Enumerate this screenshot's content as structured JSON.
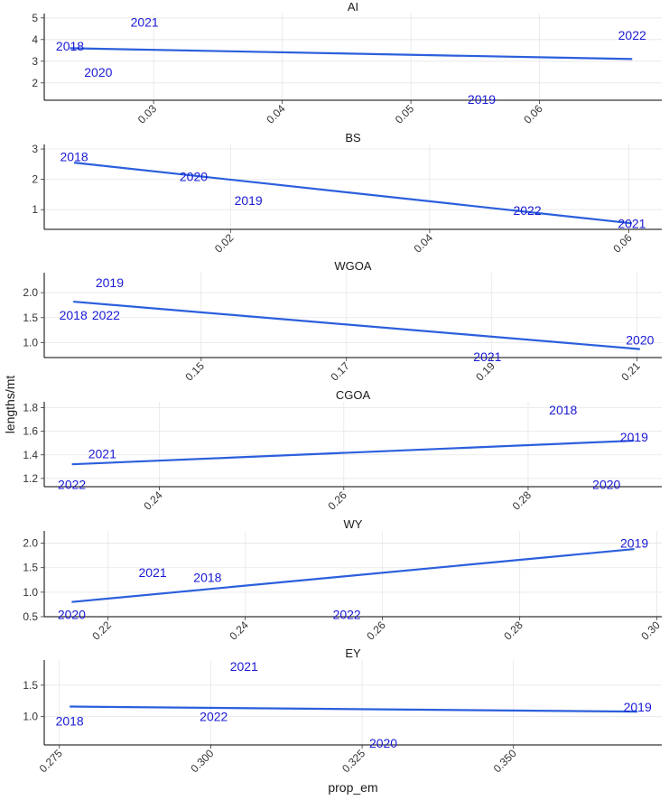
{
  "chart_data": {
    "type": "scatter",
    "xlabel": "prop_em",
    "ylabel": "lengths/mt",
    "panels": [
      {
        "title": "AI",
        "xlim": [
          0.0215,
          0.0695
        ],
        "ylim": [
          1.2,
          5.2
        ],
        "xticks": [
          0.03,
          0.04,
          0.05,
          0.06
        ],
        "xtick_labels": [
          "0.03",
          "0.04",
          "0.05",
          "0.06"
        ],
        "yticks": [
          2,
          3,
          4,
          5
        ],
        "ytick_labels": [
          "2",
          "3",
          "4",
          "5"
        ],
        "points": [
          {
            "label": "2018",
            "x": 0.0235,
            "y": 3.7
          },
          {
            "label": "2021",
            "x": 0.0293,
            "y": 4.8
          },
          {
            "label": "2020",
            "x": 0.0257,
            "y": 2.5
          },
          {
            "label": "2022",
            "x": 0.0672,
            "y": 4.2
          },
          {
            "label": "2019",
            "x": 0.0555,
            "y": 1.25
          }
        ],
        "trend": [
          {
            "x": 0.0235,
            "y": 3.6
          },
          {
            "x": 0.0672,
            "y": 3.1
          }
        ]
      },
      {
        "title": "BS",
        "xlim": [
          0.0013,
          0.0633
        ],
        "ylim": [
          0.35,
          3.15
        ],
        "xticks": [
          0.02,
          0.04,
          0.06
        ],
        "xtick_labels": [
          "0.02",
          "0.04",
          "0.06"
        ],
        "yticks": [
          1,
          2,
          3
        ],
        "ytick_labels": [
          "1",
          "2",
          "3"
        ],
        "points": [
          {
            "label": "2018",
            "x": 0.0043,
            "y": 2.75
          },
          {
            "label": "2020",
            "x": 0.0163,
            "y": 2.1
          },
          {
            "label": "2019",
            "x": 0.0218,
            "y": 1.3
          },
          {
            "label": "2022",
            "x": 0.0498,
            "y": 0.98
          },
          {
            "label": "2021",
            "x": 0.0603,
            "y": 0.55
          }
        ],
        "trend": [
          {
            "x": 0.0043,
            "y": 2.55
          },
          {
            "x": 0.0603,
            "y": 0.55
          }
        ]
      },
      {
        "title": "WGOA",
        "xlim": [
          0.1284,
          0.2134
        ],
        "ylim": [
          0.7,
          2.4
        ],
        "xticks": [
          0.15,
          0.17,
          0.19,
          0.21
        ],
        "xtick_labels": [
          "0.15",
          "0.17",
          "0.19",
          "0.21"
        ],
        "yticks": [
          1.0,
          1.5,
          2.0
        ],
        "ytick_labels": [
          "1.0",
          "1.5",
          "2.0"
        ],
        "points": [
          {
            "label": "2019",
            "x": 0.1374,
            "y": 2.2
          },
          {
            "label": "2018",
            "x": 0.1324,
            "y": 1.55
          },
          {
            "label": "2022",
            "x": 0.1369,
            "y": 1.55
          },
          {
            "label": "2021",
            "x": 0.1894,
            "y": 0.72
          },
          {
            "label": "2020",
            "x": 0.2104,
            "y": 1.05
          }
        ],
        "trend": [
          {
            "x": 0.1324,
            "y": 1.82
          },
          {
            "x": 0.2104,
            "y": 0.87
          }
        ]
      },
      {
        "title": "CGOA",
        "xlim": [
          0.2275,
          0.2945
        ],
        "ylim": [
          1.13,
          1.85
        ],
        "xticks": [
          0.24,
          0.26,
          0.28
        ],
        "xtick_labels": [
          "0.24",
          "0.26",
          "0.28"
        ],
        "yticks": [
          1.2,
          1.4,
          1.6,
          1.8
        ],
        "ytick_labels": [
          "1.2",
          "1.4",
          "1.6",
          "1.8"
        ],
        "points": [
          {
            "label": "2018",
            "x": 0.2838,
            "y": 1.78
          },
          {
            "label": "2021",
            "x": 0.2338,
            "y": 1.41
          },
          {
            "label": "2022",
            "x": 0.2305,
            "y": 1.15
          },
          {
            "label": "2020",
            "x": 0.2885,
            "y": 1.15
          },
          {
            "label": "2019",
            "x": 0.2915,
            "y": 1.55
          }
        ],
        "trend": [
          {
            "x": 0.2305,
            "y": 1.32
          },
          {
            "x": 0.2915,
            "y": 1.52
          }
        ]
      },
      {
        "title": "WY",
        "xlim": [
          0.2107,
          0.3007
        ],
        "ylim": [
          0.5,
          2.25
        ],
        "xticks": [
          0.22,
          0.24,
          0.26,
          0.28,
          0.3
        ],
        "xtick_labels": [
          "0.22",
          "0.24",
          "0.26",
          "0.28",
          "0.30"
        ],
        "yticks": [
          0.5,
          1.0,
          1.5,
          2.0
        ],
        "ytick_labels": [
          "0.5",
          "1.0",
          "1.5",
          "2.0"
        ],
        "points": [
          {
            "label": "2021",
            "x": 0.2265,
            "y": 1.4
          },
          {
            "label": "2018",
            "x": 0.2345,
            "y": 1.3
          },
          {
            "label": "2020",
            "x": 0.2147,
            "y": 0.55
          },
          {
            "label": "2022",
            "x": 0.2548,
            "y": 0.55
          },
          {
            "label": "2019",
            "x": 0.2967,
            "y": 2.0
          }
        ],
        "trend": [
          {
            "x": 0.2147,
            "y": 0.8
          },
          {
            "x": 0.2967,
            "y": 1.88
          }
        ]
      },
      {
        "title": "EY",
        "xlim": [
          0.2725,
          0.3745
        ],
        "ylim": [
          0.55,
          1.9
        ],
        "xticks": [
          0.275,
          0.3,
          0.325,
          0.35
        ],
        "xtick_labels": [
          "0.275",
          "0.300",
          "0.325",
          "0.350"
        ],
        "yticks": [
          1.0,
          1.5
        ],
        "ytick_labels": [
          "1.0",
          "1.5"
        ],
        "points": [
          {
            "label": "2021",
            "x": 0.3055,
            "y": 1.8
          },
          {
            "label": "2018",
            "x": 0.2767,
            "y": 0.93
          },
          {
            "label": "2022",
            "x": 0.3005,
            "y": 1.0
          },
          {
            "label": "2020",
            "x": 0.3285,
            "y": 0.58
          },
          {
            "label": "2019",
            "x": 0.3705,
            "y": 1.15
          }
        ],
        "trend": [
          {
            "x": 0.2767,
            "y": 1.16
          },
          {
            "x": 0.3705,
            "y": 1.08
          }
        ]
      }
    ],
    "grid": true,
    "legend": "none"
  }
}
